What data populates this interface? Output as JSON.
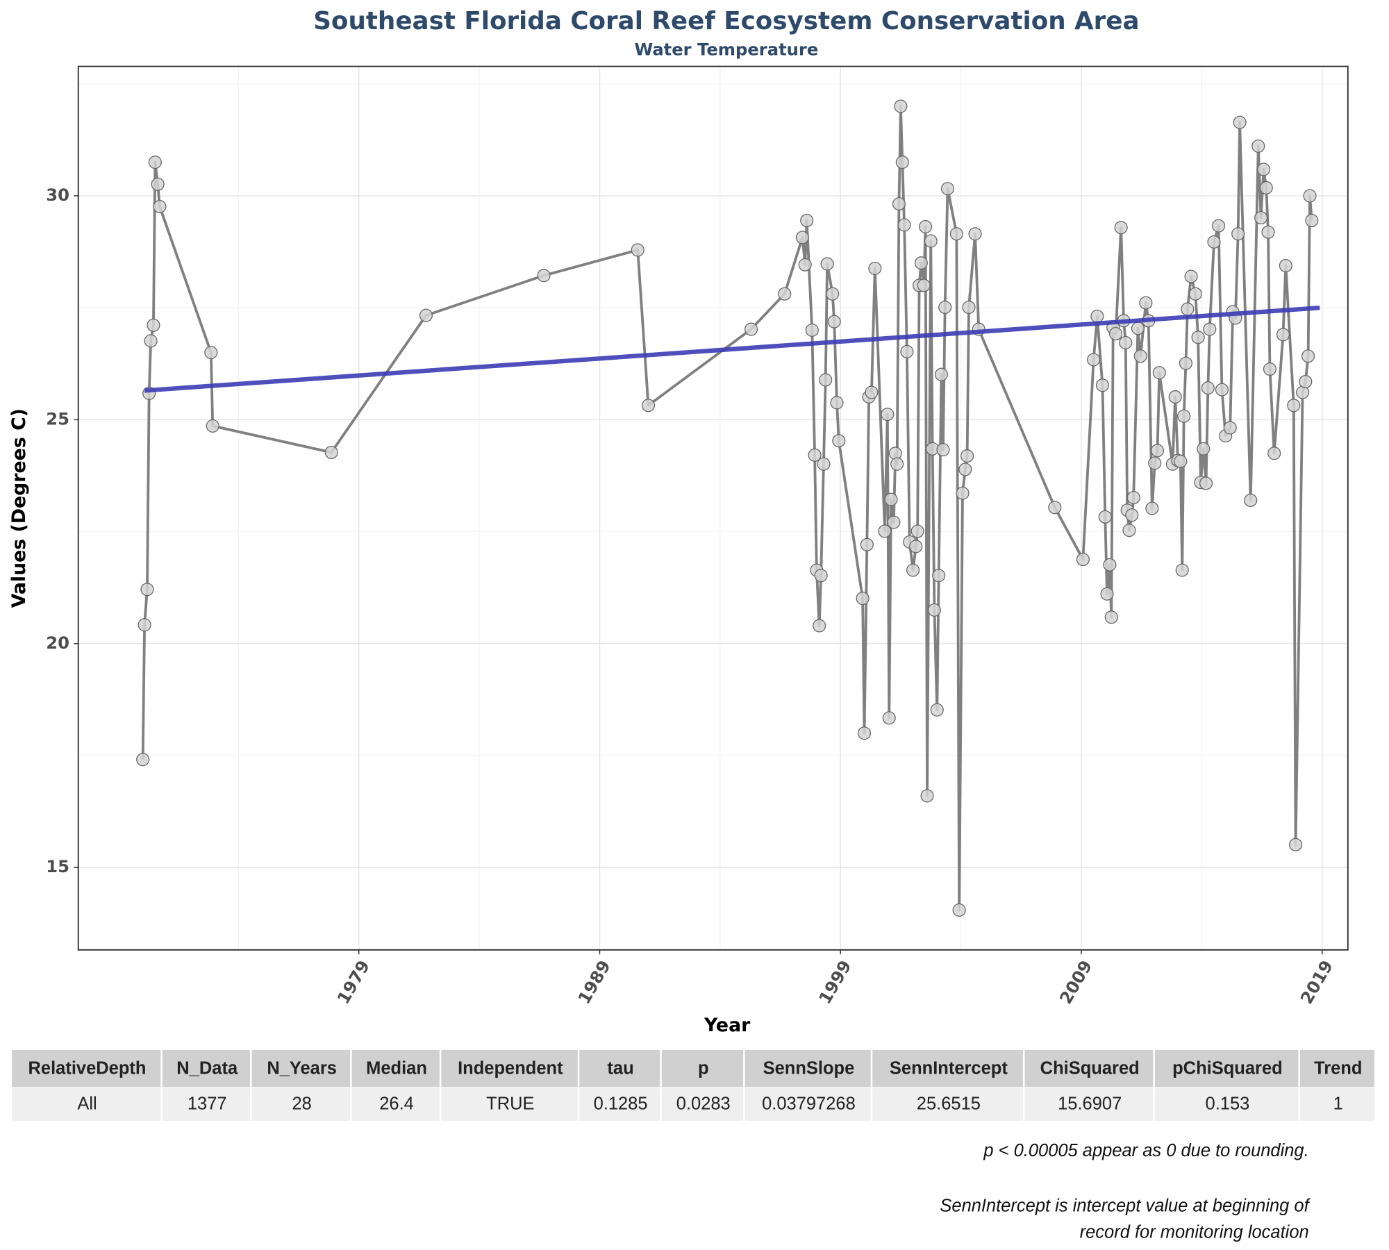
{
  "chart_data": {
    "type": "line",
    "title": "Southeast Florida Coral Reef Ecosystem Conservation Area",
    "subtitle": "Water Temperature",
    "x_label": "Year",
    "y_label": "Values (Degrees C)",
    "color": "#808080",
    "marker_color": "#d3d3d3",
    "grid": true,
    "xlim": [
      1967.35,
      2020.07
    ],
    "ylim": [
      13.16,
      32.89
    ],
    "xticks": [
      1979,
      1989,
      1999,
      2009,
      2019
    ],
    "yticks": [
      15,
      20,
      25,
      30
    ],
    "x_minor_ticks": [
      1974,
      1984,
      1994,
      2004,
      2014
    ],
    "y_minor_ticks": [
      17.5,
      22.5,
      27.5,
      32.5
    ],
    "x": [
      1970.03,
      1970.1,
      1970.21,
      1970.29,
      1970.36,
      1970.47,
      1970.54,
      1970.65,
      1970.73,
      1972.86,
      1972.93,
      1977.86,
      1981.79,
      1986.68,
      1990.58,
      1991.02,
      1995.29,
      1996.68,
      1997.42,
      1997.53,
      1997.6,
      1997.82,
      1997.93,
      1998.01,
      1998.12,
      1998.19,
      1998.3,
      1998.38,
      1998.45,
      1998.67,
      1998.74,
      1998.85,
      1998.93,
      1999.92,
      1999.99,
      2000.1,
      2000.18,
      2000.29,
      2000.43,
      2000.84,
      2000.95,
      2001.02,
      2001.1,
      2001.21,
      2001.28,
      2001.35,
      2001.43,
      2001.5,
      2001.57,
      2001.65,
      2001.76,
      2001.87,
      2002.01,
      2002.13,
      2002.2,
      2002.27,
      2002.35,
      2002.46,
      2002.53,
      2002.6,
      2002.75,
      2002.82,
      2002.9,
      2003.01,
      2003.08,
      2003.19,
      2003.26,
      2003.34,
      2003.45,
      2003.82,
      2003.93,
      2004.07,
      2004.18,
      2004.26,
      2004.33,
      2004.59,
      2004.74,
      2007.9,
      2009.07,
      2009.51,
      2009.66,
      2009.88,
      2009.99,
      2010.07,
      2010.18,
      2010.25,
      2010.32,
      2010.43,
      2010.65,
      2010.76,
      2010.84,
      2010.91,
      2010.99,
      2011.1,
      2011.17,
      2011.35,
      2011.46,
      2011.68,
      2011.79,
      2011.94,
      2012.05,
      2012.16,
      2012.24,
      2012.79,
      2012.9,
      2013.01,
      2013.12,
      2013.19,
      2013.26,
      2013.34,
      2013.41,
      2013.56,
      2013.74,
      2013.85,
      2013.96,
      2014.07,
      2014.18,
      2014.26,
      2014.33,
      2014.51,
      2014.7,
      2014.84,
      2014.99,
      2015.18,
      2015.29,
      2015.4,
      2015.51,
      2015.58,
      2016.03,
      2016.35,
      2016.46,
      2016.57,
      2016.68,
      2016.76,
      2016.83,
      2017.01,
      2017.38,
      2017.49,
      2017.82,
      2017.9,
      2018.19,
      2018.31,
      2018.42,
      2018.49,
      2018.57
    ],
    "values": [
      17.41,
      20.42,
      21.21,
      25.59,
      26.76,
      27.11,
      30.75,
      30.26,
      29.76,
      26.5,
      24.86,
      24.27,
      27.33,
      28.22,
      28.79,
      25.32,
      27.02,
      27.81,
      29.07,
      28.46,
      29.45,
      27.0,
      24.21,
      21.64,
      20.4,
      21.52,
      24.01,
      25.89,
      28.48,
      27.81,
      27.19,
      25.38,
      24.53,
      21.01,
      18.0,
      22.21,
      25.51,
      25.61,
      28.38,
      22.51,
      25.12,
      18.34,
      23.22,
      22.71,
      24.25,
      24.01,
      29.82,
      32.0,
      30.75,
      29.35,
      26.52,
      22.27,
      21.64,
      22.17,
      22.51,
      28.0,
      28.5,
      28.0,
      29.31,
      16.6,
      28.99,
      24.35,
      20.75,
      18.52,
      21.52,
      26.01,
      24.33,
      27.51,
      30.16,
      29.15,
      14.05,
      23.36,
      23.89,
      24.19,
      27.51,
      29.15,
      27.02,
      23.04,
      21.88,
      26.34,
      27.31,
      25.77,
      22.83,
      21.11,
      21.76,
      20.59,
      27.06,
      26.92,
      29.29,
      27.21,
      26.72,
      22.98,
      22.53,
      22.87,
      23.26,
      27.04,
      26.42,
      27.61,
      27.21,
      23.02,
      24.03,
      24.31,
      26.05,
      24.01,
      25.51,
      24.09,
      24.07,
      21.64,
      25.08,
      26.26,
      27.47,
      28.2,
      27.81,
      26.84,
      23.6,
      24.35,
      23.58,
      25.71,
      27.02,
      28.97,
      29.33,
      25.67,
      24.64,
      24.82,
      27.41,
      27.27,
      29.15,
      31.64,
      23.2,
      31.11,
      29.51,
      30.59,
      30.18,
      29.19,
      26.13,
      24.25,
      26.9,
      28.44,
      25.32,
      15.51,
      25.61,
      25.85,
      26.42,
      30.0,
      29.45
    ],
    "trend": {
      "color": "#3b3bb5",
      "x": [
        1970.1,
        2018.9
      ],
      "values": [
        25.65,
        27.5
      ]
    }
  },
  "table": {
    "columns": [
      "RelativeDepth",
      "N_Data",
      "N_Years",
      "Median",
      "Independent",
      "tau",
      "p",
      "SennSlope",
      "SennIntercept",
      "ChiSquared",
      "pChiSquared",
      "Trend"
    ],
    "rows": [
      [
        "All",
        "1377",
        "28",
        "26.4",
        "TRUE",
        "0.1285",
        "0.0283",
        "0.03797268",
        "25.6515",
        "15.6907",
        "0.153",
        "1"
      ]
    ]
  },
  "notes": [
    "p < 0.00005 appear as 0 due to rounding.",
    "SennIntercept is intercept value at beginning of",
    "record for monitoring location"
  ]
}
